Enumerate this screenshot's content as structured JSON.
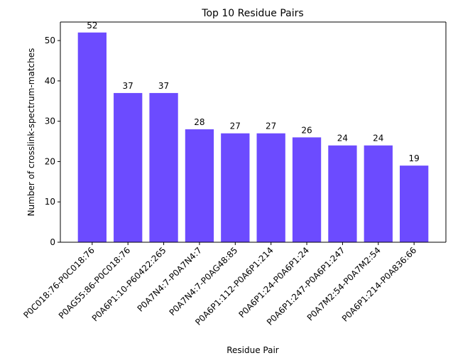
{
  "chart_data": {
    "type": "bar",
    "title": "Top 10 Residue Pairs",
    "x_label": "Residue Pair",
    "y_label": "Number of crosslink-spectrum-matches",
    "categories": [
      "P0C018:76-P0C018:76",
      "P0AG55:86-P0C018:76",
      "P0A6P1:10-P60422:265",
      "P0A7N4:7-P0A7N4:7",
      "P0A7N4:7-P0AG48:85",
      "P0A6P1:112-P0A6P1:214",
      "P0A6P1:24-P0A6P1:24",
      "P0A6P1:247-P0A6P1:247",
      "P0A7M2:54-P0A7M2:54",
      "P0A6P1:214-P0A836:66"
    ],
    "values": [
      52,
      37,
      37,
      28,
      27,
      27,
      26,
      24,
      24,
      19
    ],
    "color": "#6c4bff",
    "ylim": [
      0,
      54.6
    ],
    "yticks": [
      0,
      10,
      20,
      30,
      40,
      50
    ],
    "grid": false
  }
}
